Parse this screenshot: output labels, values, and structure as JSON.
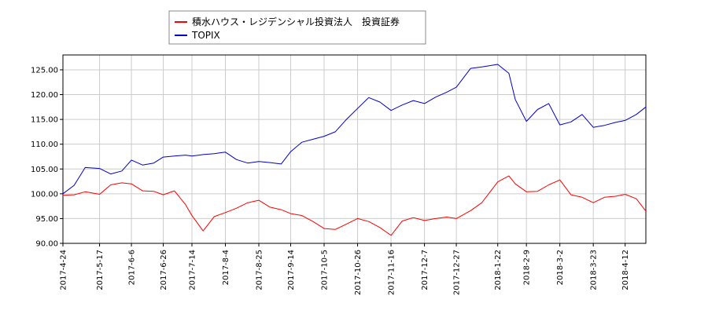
{
  "chart_data": {
    "type": "line",
    "title": "",
    "xlabel": "",
    "ylabel": "",
    "ylim": [
      90.0,
      128.0
    ],
    "grid": true,
    "legend_position": "top-center",
    "y_ticks": [
      "90.00",
      "95.00",
      "100.00",
      "105.00",
      "110.00",
      "115.00",
      "120.00",
      "125.00"
    ],
    "x_ticks": [
      "2017-4-24",
      "2017-5-17",
      "2017-6-6",
      "2017-6-26",
      "2017-7-14",
      "2017-8-4",
      "2017-8-25",
      "2017-9-14",
      "2017-10-5",
      "2017-10-26",
      "2017-11-16",
      "2017-12-7",
      "2017-12-27",
      "2018-1-22",
      "2018-2-9",
      "2018-3-2",
      "2018-3-23",
      "2018-4-12"
    ],
    "x": [
      "2017-4-24",
      "2017-5-1",
      "2017-5-8",
      "2017-5-17",
      "2017-5-24",
      "2017-5-31",
      "2017-6-6",
      "2017-6-13",
      "2017-6-20",
      "2017-6-26",
      "2017-7-3",
      "2017-7-10",
      "2017-7-14",
      "2017-7-21",
      "2017-7-28",
      "2017-8-4",
      "2017-8-11",
      "2017-8-18",
      "2017-8-25",
      "2017-9-1",
      "2017-9-8",
      "2017-9-14",
      "2017-9-21",
      "2017-9-28",
      "2017-10-5",
      "2017-10-12",
      "2017-10-19",
      "2017-10-26",
      "2017-11-2",
      "2017-11-9",
      "2017-11-16",
      "2017-11-23",
      "2017-11-30",
      "2017-12-7",
      "2017-12-14",
      "2017-12-21",
      "2017-12-27",
      "2018-1-5",
      "2018-1-12",
      "2018-1-22",
      "2018-1-29",
      "2018-2-2",
      "2018-2-9",
      "2018-2-16",
      "2018-2-23",
      "2018-3-2",
      "2018-3-9",
      "2018-3-16",
      "2018-3-23",
      "2018-3-30",
      "2018-4-6",
      "2018-4-12",
      "2018-4-19",
      "2018-4-25"
    ],
    "series": [
      {
        "name": "積水ハウス・レジデンシャル投資法人　投資証券",
        "color": "#ff0000",
        "values": [
          99.7,
          99.8,
          100.4,
          99.9,
          101.8,
          102.2,
          102.0,
          100.6,
          100.5,
          99.8,
          100.6,
          97.8,
          95.6,
          92.5,
          95.4,
          96.2,
          97.1,
          98.2,
          98.7,
          97.3,
          96.8,
          96.0,
          95.6,
          94.4,
          93.0,
          92.8,
          93.9,
          95.0,
          94.4,
          93.2,
          91.6,
          94.5,
          95.2,
          94.6,
          95.0,
          95.3,
          95.0,
          96.6,
          98.2,
          102.4,
          103.6,
          102.0,
          100.4,
          100.5,
          101.8,
          102.8,
          99.8,
          99.3,
          98.2,
          99.3,
          99.5,
          99.9,
          99.0,
          96.5
        ]
      },
      {
        "name": "TOPIX",
        "color": "#0000cc",
        "values": [
          100.0,
          101.7,
          105.3,
          105.1,
          104.0,
          104.6,
          106.8,
          105.8,
          106.2,
          107.4,
          107.6,
          107.8,
          107.6,
          107.9,
          108.1,
          108.4,
          106.9,
          106.2,
          106.5,
          106.3,
          106.0,
          108.5,
          110.4,
          111.0,
          111.6,
          112.5,
          115.0,
          117.2,
          119.4,
          118.5,
          116.8,
          117.9,
          118.8,
          118.2,
          119.5,
          120.5,
          121.5,
          125.3,
          125.6,
          126.1,
          124.3,
          119.0,
          114.6,
          117.0,
          118.2,
          113.9,
          114.5,
          116.0,
          113.4,
          113.8,
          114.4,
          114.8,
          116.0,
          117.5
        ]
      }
    ]
  }
}
